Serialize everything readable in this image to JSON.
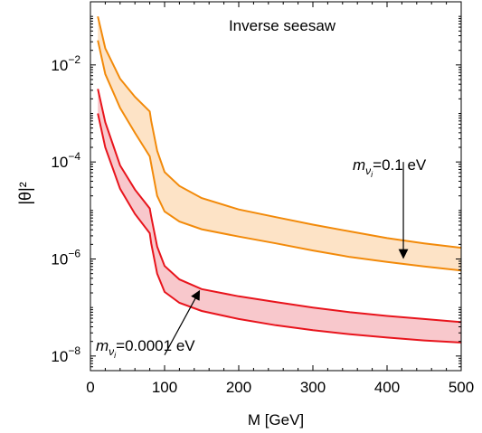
{
  "chart_data": {
    "type": "area",
    "title": "Inverse seesaw",
    "xlabel": "M [GeV]",
    "ylabel": "|θ|²",
    "xlim": [
      0,
      500
    ],
    "ylim": [
      5e-09,
      0.2
    ],
    "y_scale": "log",
    "x_ticks": [
      0,
      100,
      200,
      300,
      400,
      500
    ],
    "x_tick_labels": [
      "0",
      "100",
      "200",
      "300",
      "400",
      "500"
    ],
    "y_ticks": [
      1e-08,
      1e-06,
      0.0001,
      0.01
    ],
    "y_tick_labels": [
      {
        "base": "10",
        "exp": "−8"
      },
      {
        "base": "10",
        "exp": "−6"
      },
      {
        "base": "10",
        "exp": "−4"
      },
      {
        "base": "10",
        "exp": "−2"
      }
    ],
    "grid": false,
    "series": [
      {
        "color": "#f28a0a",
        "fill": "#fde3c6",
        "upper": {
          "x": [
            10,
            20,
            40,
            60,
            80,
            82,
            90,
            100,
            120,
            150,
            200,
            250,
            300,
            350,
            400,
            450,
            500
          ],
          "y": [
            0.1,
            0.022,
            0.0052,
            0.0022,
            0.0011,
            0.0007,
            0.00017,
            6.2e-05,
            3.2e-05,
            1.8e-05,
            1.05e-05,
            7.3e-06,
            5.1e-06,
            3.7e-06,
            2.7e-06,
            2.1e-06,
            1.7e-06
          ]
        },
        "lower": {
          "x": [
            10,
            20,
            40,
            60,
            80,
            82,
            90,
            100,
            120,
            150,
            200,
            250,
            300,
            350,
            400,
            450,
            500
          ],
          "y": [
            0.032,
            0.0065,
            0.0013,
            0.0004,
            0.00013,
            9e-05,
            2e-05,
            9.5e-06,
            5.9e-06,
            4.1e-06,
            2.9e-06,
            2.1e-06,
            1.5e-06,
            1.1e-06,
            8.7e-07,
            7e-07,
            5.8e-07
          ]
        }
      },
      {
        "color": "#e8141c",
        "fill": "#f8c8cc",
        "upper": {
          "x": [
            10,
            20,
            40,
            60,
            80,
            82,
            90,
            100,
            120,
            150,
            200,
            250,
            300,
            350,
            400,
            450,
            500
          ],
          "y": [
            0.0032,
            0.00066,
            8.5e-05,
            2.7e-05,
            1.1e-05,
            7.5e-06,
            1.8e-06,
            7.2e-07,
            3.8e-07,
            2.4e-07,
            1.7e-07,
            1.3e-07,
            1e-07,
            8e-08,
            6.7e-08,
            5.8e-08,
            5e-08
          ]
        },
        "lower": {
          "x": [
            10,
            20,
            40,
            60,
            80,
            82,
            90,
            100,
            120,
            150,
            200,
            250,
            300,
            350,
            400,
            450,
            500
          ],
          "y": [
            0.001,
            0.0002,
            2.8e-05,
            8.5e-06,
            3.4e-06,
            2.1e-06,
            5e-07,
            2.1e-07,
            1.25e-07,
            8.5e-08,
            5.8e-08,
            4.3e-08,
            3.4e-08,
            2.8e-08,
            2.4e-08,
            2.1e-08,
            1.9e-08
          ]
        }
      }
    ],
    "annotations": [
      {
        "m": "m",
        "sub": "ν",
        "subsub": "i",
        "value": "=0.1 eV",
        "arrow_from": [
          422,
          0.0001
        ],
        "arrow_to": [
          422,
          1.05e-06
        ]
      },
      {
        "m": "m",
        "sub": "ν",
        "subsub": "i",
        "value": "=0.0001 eV",
        "arrow_from": [
          100,
          1.05e-08
        ],
        "arrow_to": [
          147,
          2.2e-07
        ]
      }
    ]
  }
}
